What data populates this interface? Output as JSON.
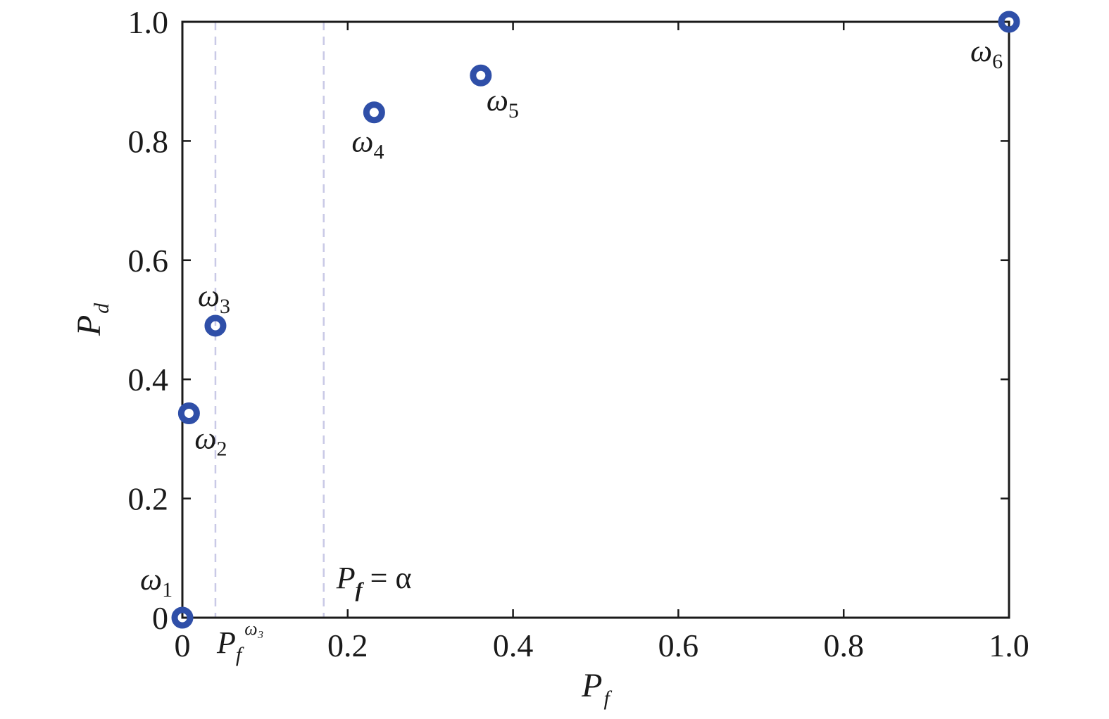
{
  "chart_data": {
    "type": "scatter",
    "xlabel": "P",
    "xlabel_sub": "f",
    "ylabel": "P",
    "ylabel_sub": "d",
    "xlim": [
      0,
      1.0
    ],
    "ylim": [
      0,
      1.0
    ],
    "x_ticks": [
      0,
      0.2,
      0.4,
      0.6,
      0.8,
      1.0
    ],
    "x_tick_labels": [
      "0",
      "0.2",
      "0.4",
      "0.6",
      "0.8",
      "1.0"
    ],
    "y_ticks": [
      0,
      0.2,
      0.4,
      0.6,
      0.8,
      1.0
    ],
    "y_tick_labels": [
      "0",
      "0.2",
      "0.4",
      "0.6",
      "0.8",
      "1.0"
    ],
    "grid": false,
    "marker_color": "#2f4fa8",
    "reference_line_color": "#c9c9e6",
    "points": [
      {
        "x": 0.0,
        "y": 0.0,
        "label": "ω",
        "sub": "1",
        "label_pos": "top-left"
      },
      {
        "x": 0.008,
        "y": 0.343,
        "label": "ω",
        "sub": "2",
        "label_pos": "below-right"
      },
      {
        "x": 0.04,
        "y": 0.49,
        "label": "ω",
        "sub": "3",
        "label_pos": "above"
      },
      {
        "x": 0.232,
        "y": 0.848,
        "label": "ω",
        "sub": "4",
        "label_pos": "below"
      },
      {
        "x": 0.361,
        "y": 0.91,
        "label": "ω",
        "sub": "5",
        "label_pos": "below-right"
      },
      {
        "x": 1.0,
        "y": 1.0,
        "label": "ω",
        "sub": "6",
        "label_pos": "below-left"
      }
    ],
    "reference_lines": [
      {
        "x": 0.04,
        "label": "P",
        "label_sub": "f",
        "label_sup": "ω₃",
        "label_pos": "below-axis"
      },
      {
        "x": 0.171,
        "label": "P",
        "label_sub": "f",
        "label_rhs": " = α",
        "label_pos": "inside-bottom"
      }
    ]
  }
}
